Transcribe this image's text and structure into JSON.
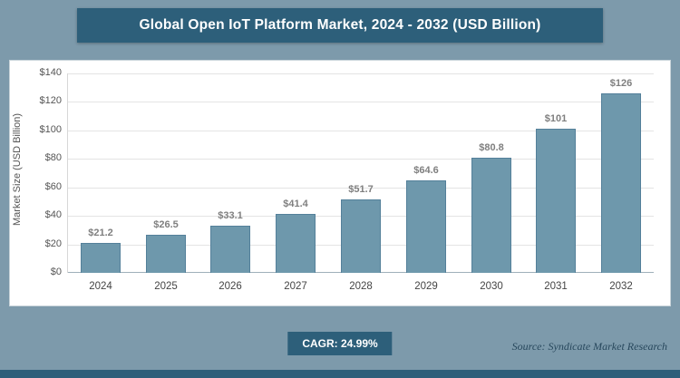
{
  "header": {
    "title": "Global Open IoT Platform Market, 2024 - 2032 (USD Billion)"
  },
  "chart_data": {
    "type": "bar",
    "title": "Global Open IoT Platform Market, 2024 - 2032 (USD Billion)",
    "categories": [
      "2024",
      "2025",
      "2026",
      "2027",
      "2028",
      "2029",
      "2030",
      "2031",
      "2032"
    ],
    "values": [
      21.2,
      26.5,
      33.1,
      41.4,
      51.7,
      64.6,
      80.8,
      101,
      126
    ],
    "value_labels": [
      "$21.2",
      "$26.5",
      "$33.1",
      "$41.4",
      "$51.7",
      "$64.6",
      "$80.8",
      "$101",
      "$126"
    ],
    "xlabel": "",
    "ylabel": "Market Size (USD Billion)",
    "ylim": [
      0,
      140
    ],
    "ytick_step": 20,
    "ytick_labels": [
      "$0",
      "$20",
      "$40",
      "$60",
      "$80",
      "$100",
      "$120",
      "$140"
    ],
    "grid": true,
    "legend": false,
    "bar_color": "#6e98ac",
    "bar_border": "#54809a"
  },
  "footer": {
    "cagr_label": "CAGR: 24.99%",
    "source": "Source: Syndicate Market Research"
  },
  "colors": {
    "background": "#7d9aab",
    "header_bg": "#2d5f7a",
    "badge_bg": "#2d5f7a",
    "accent_strip": "#2d5f7a",
    "bar_fill": "#6e98ac",
    "bar_border": "#54809a",
    "value_label": "#7f7f7f"
  }
}
